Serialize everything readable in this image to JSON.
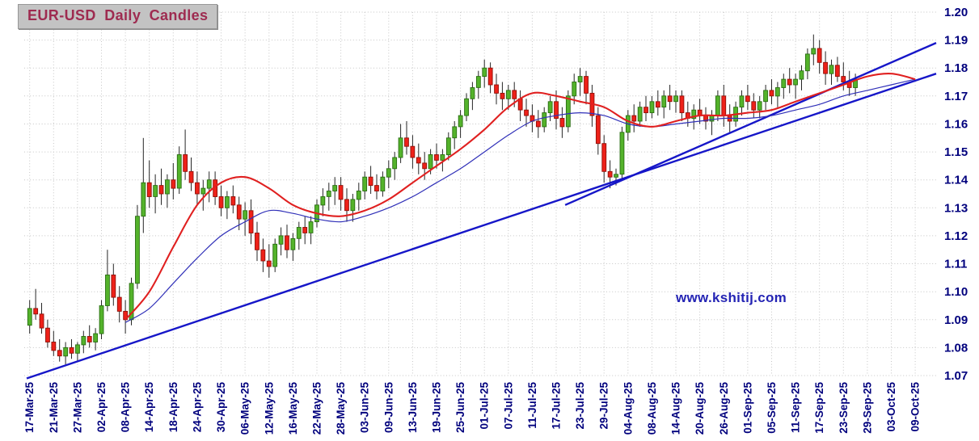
{
  "title": "EUR-USD Daily Candles",
  "watermark": "www.kshitij.com",
  "colors": {
    "up_candle": "#54b32b",
    "up_candle_border": "#2a6e12",
    "down_candle": "#ee2119",
    "down_candle_border": "#8f1008",
    "wick": "#262626",
    "ma_fast": "#e02020",
    "ma_slow": "#3030b8",
    "trendline": "#1616c8",
    "grid": "#c5c5c5",
    "axis_label": "#00007d",
    "title_text": "#9e2b50",
    "title_bg": "#c3c3c3",
    "watermark": "#2424b4"
  },
  "chart_data": {
    "type": "candlestick",
    "title": "EUR-USD Daily Candles",
    "ylim": [
      1.07,
      1.2
    ],
    "grid": true,
    "y_ticks": [
      "1.20",
      "1.19",
      "1.18",
      "1.17",
      "1.16",
      "1.15",
      "1.14",
      "1.13",
      "1.12",
      "1.11",
      "1.10",
      "1.09",
      "1.08",
      "1.07"
    ],
    "x_tick_labels": [
      "17-Mar-25",
      "21-Mar-25",
      "27-Mar-25",
      "02-Apr-25",
      "08-Apr-25",
      "14-Apr-25",
      "18-Apr-25",
      "24-Apr-25",
      "30-Apr-25",
      "06-May-25",
      "12-May-25",
      "16-May-25",
      "22-May-25",
      "28-May-25",
      "03-Jun-25",
      "09-Jun-25",
      "13-Jun-25",
      "19-Jun-25",
      "25-Jun-25",
      "01-Jul-25",
      "07-Jul-25",
      "11-Jul-25",
      "17-Jul-25",
      "23-Jul-25",
      "29-Jul-25",
      "04-Aug-25",
      "08-Aug-25",
      "14-Aug-25",
      "20-Aug-25",
      "26-Aug-25",
      "01-Sep-25",
      "05-Sep-25",
      "11-Sep-25",
      "17-Sep-25",
      "23-Sep-25",
      "29-Sep-25",
      "03-Oct-25",
      "09-Oct-25"
    ],
    "x_tick_slot_step": 4,
    "total_slots": 152,
    "candles": [
      [
        1.088,
        1.097,
        1.085,
        1.094
      ],
      [
        1.094,
        1.101,
        1.09,
        1.092
      ],
      [
        1.092,
        1.096,
        1.085,
        1.087
      ],
      [
        1.087,
        1.09,
        1.08,
        1.082
      ],
      [
        1.082,
        1.086,
        1.077,
        1.079
      ],
      [
        1.079,
        1.083,
        1.075,
        1.077
      ],
      [
        1.077,
        1.082,
        1.074,
        1.08
      ],
      [
        1.08,
        1.083,
        1.076,
        1.078
      ],
      [
        1.078,
        1.082,
        1.075,
        1.081
      ],
      [
        1.081,
        1.086,
        1.078,
        1.084
      ],
      [
        1.084,
        1.088,
        1.08,
        1.082
      ],
      [
        1.082,
        1.087,
        1.079,
        1.085
      ],
      [
        1.085,
        1.097,
        1.083,
        1.095
      ],
      [
        1.095,
        1.115,
        1.093,
        1.106
      ],
      [
        1.106,
        1.11,
        1.095,
        1.098
      ],
      [
        1.098,
        1.102,
        1.089,
        1.093
      ],
      [
        1.093,
        1.097,
        1.085,
        1.09
      ],
      [
        1.09,
        1.105,
        1.088,
        1.103
      ],
      [
        1.103,
        1.131,
        1.101,
        1.127
      ],
      [
        1.127,
        1.155,
        1.121,
        1.139
      ],
      [
        1.139,
        1.147,
        1.13,
        1.134
      ],
      [
        1.134,
        1.142,
        1.128,
        1.138
      ],
      [
        1.138,
        1.144,
        1.131,
        1.135
      ],
      [
        1.135,
        1.142,
        1.13,
        1.14
      ],
      [
        1.14,
        1.146,
        1.133,
        1.137
      ],
      [
        1.137,
        1.152,
        1.135,
        1.149
      ],
      [
        1.149,
        1.158,
        1.14,
        1.143
      ],
      [
        1.143,
        1.148,
        1.136,
        1.139
      ],
      [
        1.139,
        1.143,
        1.131,
        1.135
      ],
      [
        1.135,
        1.14,
        1.129,
        1.137
      ],
      [
        1.137,
        1.143,
        1.132,
        1.14
      ],
      [
        1.14,
        1.143,
        1.131,
        1.134
      ],
      [
        1.134,
        1.138,
        1.127,
        1.13
      ],
      [
        1.13,
        1.136,
        1.126,
        1.134
      ],
      [
        1.134,
        1.138,
        1.128,
        1.131
      ],
      [
        1.131,
        1.134,
        1.122,
        1.126
      ],
      [
        1.126,
        1.132,
        1.12,
        1.129
      ],
      [
        1.129,
        1.133,
        1.117,
        1.121
      ],
      [
        1.121,
        1.125,
        1.111,
        1.115
      ],
      [
        1.115,
        1.119,
        1.107,
        1.111
      ],
      [
        1.111,
        1.117,
        1.105,
        1.109
      ],
      [
        1.109,
        1.119,
        1.107,
        1.117
      ],
      [
        1.117,
        1.123,
        1.113,
        1.12
      ],
      [
        1.12,
        1.124,
        1.112,
        1.115
      ],
      [
        1.115,
        1.121,
        1.111,
        1.119
      ],
      [
        1.119,
        1.125,
        1.115,
        1.123
      ],
      [
        1.123,
        1.127,
        1.117,
        1.121
      ],
      [
        1.121,
        1.127,
        1.117,
        1.125
      ],
      [
        1.125,
        1.133,
        1.123,
        1.131
      ],
      [
        1.131,
        1.137,
        1.127,
        1.134
      ],
      [
        1.134,
        1.139,
        1.129,
        1.136
      ],
      [
        1.136,
        1.141,
        1.131,
        1.138
      ],
      [
        1.138,
        1.141,
        1.129,
        1.133
      ],
      [
        1.133,
        1.137,
        1.125,
        1.129
      ],
      [
        1.129,
        1.135,
        1.125,
        1.133
      ],
      [
        1.133,
        1.139,
        1.129,
        1.136
      ],
      [
        1.136,
        1.143,
        1.133,
        1.141
      ],
      [
        1.141,
        1.145,
        1.135,
        1.138
      ],
      [
        1.138,
        1.142,
        1.133,
        1.136
      ],
      [
        1.136,
        1.143,
        1.134,
        1.141
      ],
      [
        1.141,
        1.147,
        1.137,
        1.144
      ],
      [
        1.144,
        1.15,
        1.14,
        1.148
      ],
      [
        1.148,
        1.16,
        1.146,
        1.155
      ],
      [
        1.155,
        1.161,
        1.149,
        1.152
      ],
      [
        1.152,
        1.156,
        1.144,
        1.148
      ],
      [
        1.148,
        1.153,
        1.142,
        1.146
      ],
      [
        1.146,
        1.15,
        1.14,
        1.144
      ],
      [
        1.144,
        1.151,
        1.142,
        1.149
      ],
      [
        1.149,
        1.153,
        1.144,
        1.147
      ],
      [
        1.147,
        1.151,
        1.143,
        1.149
      ],
      [
        1.149,
        1.157,
        1.147,
        1.155
      ],
      [
        1.155,
        1.161,
        1.151,
        1.159
      ],
      [
        1.159,
        1.165,
        1.155,
        1.163
      ],
      [
        1.163,
        1.171,
        1.161,
        1.169
      ],
      [
        1.169,
        1.175,
        1.165,
        1.173
      ],
      [
        1.173,
        1.179,
        1.169,
        1.177
      ],
      [
        1.177,
        1.183,
        1.173,
        1.18
      ],
      [
        1.18,
        1.182,
        1.171,
        1.174
      ],
      [
        1.174,
        1.178,
        1.167,
        1.171
      ],
      [
        1.171,
        1.175,
        1.165,
        1.169
      ],
      [
        1.169,
        1.174,
        1.165,
        1.172
      ],
      [
        1.172,
        1.175,
        1.166,
        1.169
      ],
      [
        1.169,
        1.172,
        1.161,
        1.165
      ],
      [
        1.165,
        1.169,
        1.159,
        1.163
      ],
      [
        1.163,
        1.167,
        1.157,
        1.161
      ],
      [
        1.161,
        1.165,
        1.155,
        1.159
      ],
      [
        1.159,
        1.166,
        1.157,
        1.164
      ],
      [
        1.164,
        1.17,
        1.161,
        1.168
      ],
      [
        1.168,
        1.172,
        1.158,
        1.162
      ],
      [
        1.162,
        1.166,
        1.155,
        1.159
      ],
      [
        1.159,
        1.172,
        1.157,
        1.17
      ],
      [
        1.17,
        1.178,
        1.167,
        1.175
      ],
      [
        1.175,
        1.18,
        1.17,
        1.177
      ],
      [
        1.177,
        1.179,
        1.167,
        1.171
      ],
      [
        1.171,
        1.174,
        1.159,
        1.163
      ],
      [
        1.163,
        1.166,
        1.149,
        1.153
      ],
      [
        1.153,
        1.156,
        1.139,
        1.143
      ],
      [
        1.143,
        1.147,
        1.137,
        1.141
      ],
      [
        1.141,
        1.144,
        1.138,
        1.142
      ],
      [
        1.142,
        1.159,
        1.14,
        1.157
      ],
      [
        1.157,
        1.165,
        1.154,
        1.163
      ],
      [
        1.163,
        1.167,
        1.157,
        1.161
      ],
      [
        1.161,
        1.168,
        1.159,
        1.166
      ],
      [
        1.166,
        1.17,
        1.161,
        1.164
      ],
      [
        1.164,
        1.17,
        1.162,
        1.168
      ],
      [
        1.168,
        1.172,
        1.163,
        1.166
      ],
      [
        1.166,
        1.172,
        1.162,
        1.17
      ],
      [
        1.17,
        1.174,
        1.165,
        1.168
      ],
      [
        1.168,
        1.172,
        1.164,
        1.17
      ],
      [
        1.17,
        1.172,
        1.161,
        1.164
      ],
      [
        1.164,
        1.168,
        1.159,
        1.162
      ],
      [
        1.162,
        1.167,
        1.158,
        1.165
      ],
      [
        1.165,
        1.169,
        1.16,
        1.163
      ],
      [
        1.163,
        1.166,
        1.158,
        1.161
      ],
      [
        1.161,
        1.165,
        1.156,
        1.163
      ],
      [
        1.163,
        1.172,
        1.161,
        1.17
      ],
      [
        1.17,
        1.174,
        1.159,
        1.163
      ],
      [
        1.163,
        1.167,
        1.157,
        1.161
      ],
      [
        1.161,
        1.168,
        1.159,
        1.166
      ],
      [
        1.166,
        1.172,
        1.163,
        1.17
      ],
      [
        1.17,
        1.174,
        1.165,
        1.168
      ],
      [
        1.168,
        1.171,
        1.162,
        1.165
      ],
      [
        1.165,
        1.17,
        1.162,
        1.168
      ],
      [
        1.168,
        1.174,
        1.165,
        1.172
      ],
      [
        1.172,
        1.176,
        1.167,
        1.17
      ],
      [
        1.17,
        1.175,
        1.166,
        1.173
      ],
      [
        1.173,
        1.178,
        1.169,
        1.176
      ],
      [
        1.176,
        1.18,
        1.171,
        1.174
      ],
      [
        1.174,
        1.178,
        1.169,
        1.176
      ],
      [
        1.176,
        1.181,
        1.172,
        1.179
      ],
      [
        1.179,
        1.187,
        1.176,
        1.185
      ],
      [
        1.185,
        1.192,
        1.181,
        1.187
      ],
      [
        1.187,
        1.19,
        1.178,
        1.182
      ],
      [
        1.182,
        1.186,
        1.174,
        1.178
      ],
      [
        1.178,
        1.183,
        1.174,
        1.181
      ],
      [
        1.181,
        1.184,
        1.175,
        1.177
      ],
      [
        1.177,
        1.182,
        1.172,
        1.175
      ],
      [
        1.175,
        1.179,
        1.17,
        1.173
      ],
      [
        1.173,
        1.178,
        1.17,
        1.176
      ]
    ],
    "ma_fast": {
      "name": "moving-average-red",
      "start_slot": 16,
      "step": 4,
      "values": [
        1.09,
        1.1,
        1.116,
        1.131,
        1.139,
        1.141,
        1.137,
        1.131,
        1.128,
        1.127,
        1.129,
        1.133,
        1.139,
        1.145,
        1.151,
        1.158,
        1.166,
        1.171,
        1.17,
        1.168,
        1.166,
        1.161,
        1.159,
        1.161,
        1.163,
        1.163,
        1.164,
        1.165,
        1.168,
        1.171,
        1.174,
        1.177,
        1.178,
        1.176
      ]
    },
    "ma_slow": {
      "name": "moving-average-blue",
      "start_slot": 16,
      "step": 4,
      "values": [
        1.089,
        1.094,
        1.103,
        1.112,
        1.12,
        1.125,
        1.129,
        1.128,
        1.126,
        1.125,
        1.127,
        1.13,
        1.134,
        1.139,
        1.144,
        1.15,
        1.156,
        1.161,
        1.163,
        1.164,
        1.163,
        1.16,
        1.159,
        1.16,
        1.161,
        1.162,
        1.162,
        1.163,
        1.165,
        1.167,
        1.17,
        1.172,
        1.174,
        1.176
      ]
    },
    "trendlines": [
      {
        "name": "long-term-support",
        "from_slot": -0.5,
        "from_price": 1.069,
        "to_slot": 151.5,
        "to_price": 1.178
      },
      {
        "name": "steep-support",
        "from_slot": 89.5,
        "from_price": 1.131,
        "to_slot": 151.5,
        "to_price": 1.189
      }
    ],
    "legend_position": "none"
  }
}
